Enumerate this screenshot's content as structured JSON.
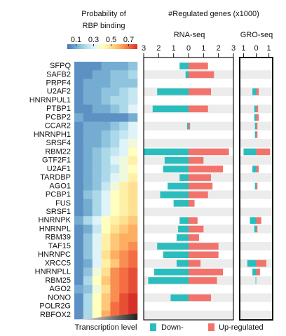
{
  "chart_data": [
    {
      "type": "heatmap",
      "categories": [
        "SFPQ",
        "SAFB2",
        "PRPF4",
        "U2AF2",
        "HNRNPUL1",
        "PTBP1",
        "PCBP2",
        "CCAR2",
        "HNRNPH1",
        "SRSF4",
        "RBM22",
        "GTF2F1",
        "U2AF1",
        "TARDBP",
        "AGO1",
        "PCBP1",
        "FUS",
        "SRSF1",
        "HNRNPK",
        "HNRNPL",
        "RBM39",
        "TAF15",
        "HNRNPC",
        "XRCC5",
        "HNRNPLL",
        "RBM25",
        "AGO2",
        "NONO",
        "POLR2G",
        "RBFOX2"
      ],
      "values": [
        [
          0.05,
          0.05,
          0.05,
          0.1,
          0.1,
          0.1,
          0.15
        ],
        [
          0.05,
          0.05,
          0.1,
          0.1,
          0.15,
          0.15,
          0.2
        ],
        [
          0.05,
          0.1,
          0.1,
          0.1,
          0.15,
          0.15,
          0.15
        ],
        [
          0.05,
          0.1,
          0.1,
          0.15,
          0.15,
          0.2,
          0.25
        ],
        [
          0.05,
          0.1,
          0.1,
          0.15,
          0.2,
          0.2,
          0.25
        ],
        [
          0.05,
          0.05,
          0.1,
          0.1,
          0.15,
          0.2,
          0.3
        ],
        [
          0.1,
          0.05,
          0.05,
          0.05,
          0.05,
          0.05,
          0.1
        ],
        [
          0.05,
          0.1,
          0.1,
          0.1,
          0.15,
          0.2,
          0.3
        ],
        [
          0.05,
          0.1,
          0.1,
          0.15,
          0.2,
          0.25,
          0.3
        ],
        [
          0.05,
          0.1,
          0.1,
          0.15,
          0.2,
          0.3,
          0.35
        ],
        [
          0.05,
          0.1,
          0.15,
          0.2,
          0.25,
          0.3,
          0.4
        ],
        [
          0.05,
          0.1,
          0.15,
          0.2,
          0.3,
          0.35,
          0.45
        ],
        [
          0.05,
          0.1,
          0.15,
          0.2,
          0.25,
          0.35,
          0.4
        ],
        [
          0.05,
          0.1,
          0.15,
          0.2,
          0.3,
          0.35,
          0.45
        ],
        [
          0.05,
          0.1,
          0.15,
          0.25,
          0.35,
          0.45,
          0.5
        ],
        [
          0.05,
          0.15,
          0.2,
          0.3,
          0.4,
          0.45,
          0.5
        ],
        [
          0.05,
          0.1,
          0.2,
          0.3,
          0.4,
          0.45,
          0.5
        ],
        [
          0.05,
          0.1,
          0.2,
          0.3,
          0.4,
          0.45,
          0.5
        ],
        [
          0.1,
          0.2,
          0.3,
          0.4,
          0.45,
          0.5,
          0.55
        ],
        [
          0.05,
          0.1,
          0.25,
          0.4,
          0.5,
          0.55,
          0.6
        ],
        [
          0.05,
          0.15,
          0.3,
          0.45,
          0.55,
          0.6,
          0.6
        ],
        [
          0.05,
          0.15,
          0.3,
          0.45,
          0.55,
          0.6,
          0.65
        ],
        [
          0.05,
          0.15,
          0.3,
          0.5,
          0.6,
          0.65,
          0.7
        ],
        [
          0.05,
          0.1,
          0.3,
          0.45,
          0.55,
          0.65,
          0.7
        ],
        [
          0.05,
          0.15,
          0.35,
          0.5,
          0.65,
          0.7,
          0.75
        ],
        [
          0.05,
          0.2,
          0.4,
          0.55,
          0.65,
          0.7,
          0.75
        ],
        [
          0.1,
          0.15,
          0.35,
          0.5,
          0.65,
          0.7,
          0.75
        ],
        [
          0.05,
          0.2,
          0.4,
          0.55,
          0.65,
          0.75,
          0.8
        ],
        [
          0.05,
          0.2,
          0.4,
          0.55,
          0.7,
          0.75,
          0.8
        ],
        [
          0.05,
          0.2,
          0.4,
          0.6,
          0.7,
          0.75,
          0.8
        ]
      ],
      "xlabel": "Transcription level",
      "colorbar": {
        "title": [
          "Probability of",
          "RBP binding"
        ],
        "lim": [
          0,
          0.8
        ],
        "ticks": [
          0.1,
          0.3,
          0.5,
          0.7
        ],
        "colors": [
          "#4575b4",
          "#74add1",
          "#abd9e9",
          "#e0f3f8",
          "#ffffbf",
          "#fee090",
          "#fdae61",
          "#f46d43",
          "#d73027"
        ]
      }
    },
    {
      "type": "diverging-bar",
      "title": "#Regulated genes (x1000)",
      "subtitle": "RNA-seq",
      "xlim": [
        -3,
        3
      ],
      "xticks": [
        {
          "value": -3,
          "label": "3"
        },
        {
          "value": -2,
          "label": "2"
        },
        {
          "value": -1,
          "label": "1"
        },
        0,
        1,
        2,
        3
      ],
      "series": [
        {
          "name": "Down-",
          "color": "#2bbdbd",
          "values": [
            -0.6,
            -0.2,
            0,
            -2.1,
            0,
            -2.4,
            0,
            -0.1,
            0,
            0,
            -3.0,
            -1.6,
            -1.7,
            -0.6,
            -1.4,
            -1.9,
            -1.0,
            0,
            -0.6,
            -0.7,
            -0.8,
            -2.1,
            -1.7,
            -0.8,
            -2.3,
            -2.7,
            0,
            -1.2,
            0,
            0
          ]
        },
        {
          "name": "Up-regulated",
          "color": "#f2736b",
          "values": [
            1.3,
            1.7,
            0,
            1.5,
            0,
            1.3,
            0,
            0.1,
            0,
            0,
            2.7,
            1.0,
            2.3,
            1.5,
            1.6,
            1.3,
            0.4,
            0,
            0.6,
            1.0,
            0.7,
            2.0,
            2.0,
            0.8,
            2.3,
            1.9,
            0,
            1.5,
            0,
            0
          ]
        }
      ]
    },
    {
      "type": "diverging-bar",
      "subtitle": "GRO-seq",
      "xlim": [
        -1.3,
        1.3
      ],
      "xticks": [
        {
          "value": -1,
          "label": "1"
        },
        0,
        1
      ],
      "series": [
        {
          "color": "#2bbdbd",
          "values": [
            0,
            0,
            0,
            -0.3,
            0,
            -0.15,
            -0.15,
            -0.1,
            -0.1,
            0,
            -1.0,
            0,
            -0.3,
            0,
            -0.1,
            0,
            0,
            0,
            -0.5,
            -0.15,
            0,
            0,
            0,
            -0.7,
            -0.3,
            -0.05,
            0,
            0,
            0,
            0
          ]
        },
        {
          "color": "#f2736b",
          "values": [
            0,
            0,
            0,
            0.2,
            0,
            0.15,
            0.2,
            0.1,
            0.1,
            0,
            1.1,
            0,
            0.2,
            0,
            0.1,
            0,
            0,
            0,
            0.4,
            0.1,
            0,
            0,
            0,
            0.8,
            0.3,
            0,
            0,
            0,
            0,
            0
          ]
        }
      ]
    }
  ]
}
